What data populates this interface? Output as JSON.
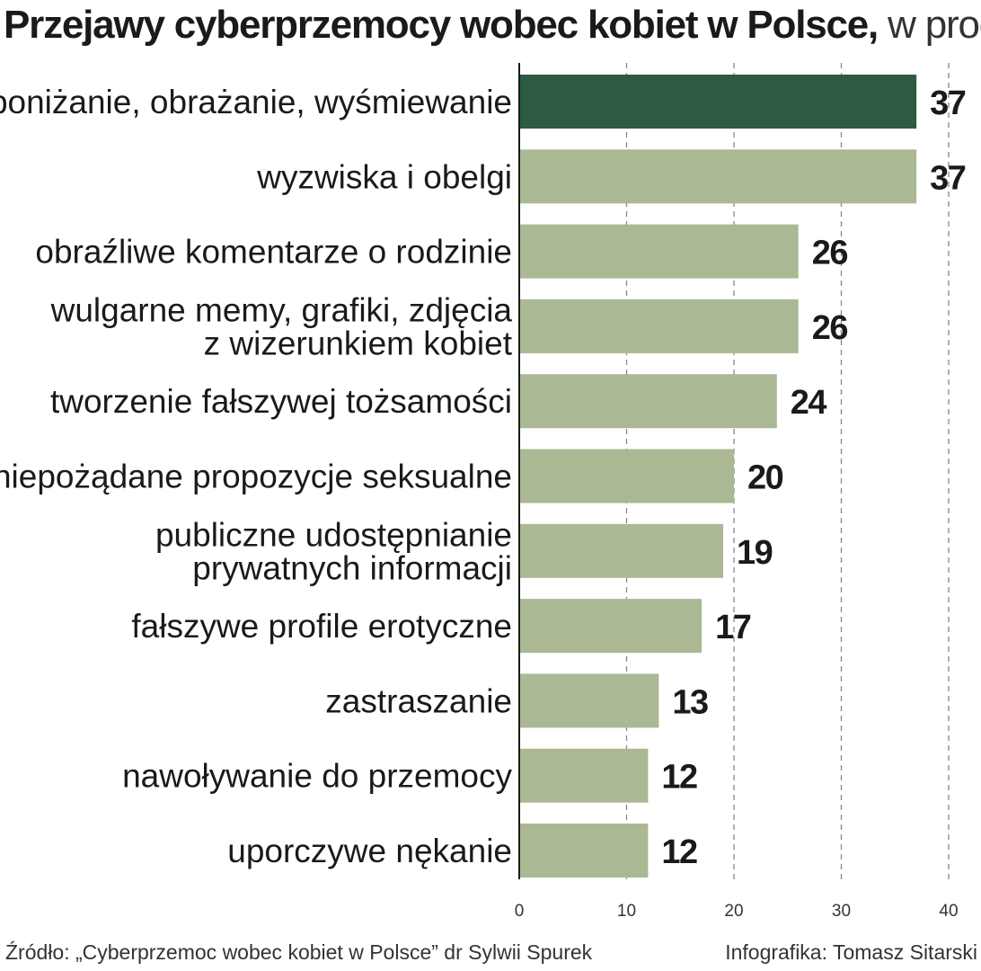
{
  "title": "Przejawy cyberprzemocy wobec kobiet w Polsce,",
  "unit": "w proc.",
  "source": "Źródło: „Cyberprzemoc wobec kobiet w Polsce” dr Sylwii Spurek",
  "credit": "Infografika: Tomasz Sitarski",
  "colors": {
    "highlight": "#2d5a43",
    "bar": "#abb894",
    "axis": "#1a1a1a",
    "grid": "#888888"
  },
  "chart_data": {
    "type": "bar",
    "orientation": "horizontal",
    "title": "Przejawy cyberprzemocy wobec kobiet w Polsce, w proc.",
    "categories": [
      [
        "poniżanie, obrażanie, wyśmiewanie"
      ],
      [
        "wyzwiska i obelgi"
      ],
      [
        "obraźliwe komentarze o rodzinie"
      ],
      [
        "wulgarne memy, grafiki, zdjęcia",
        "z wizerunkiem kobiet"
      ],
      [
        "tworzenie fałszywej tożsamości"
      ],
      [
        "niepożądane propozycje seksualne"
      ],
      [
        "publiczne udostępnianie",
        "prywatnych informacji"
      ],
      [
        "fałszywe profile erotyczne"
      ],
      [
        "zastraszanie"
      ],
      [
        "nawoływanie do przemocy"
      ],
      [
        "uporczywe nękanie"
      ]
    ],
    "values": [
      37,
      37,
      26,
      26,
      24,
      20,
      19,
      17,
      13,
      12,
      12
    ],
    "highlight_index": 0,
    "xlim": [
      0,
      40
    ],
    "xticks": [
      0,
      10,
      20,
      30,
      40
    ],
    "grid": "vertical dashed",
    "xlabel": "",
    "ylabel": ""
  }
}
